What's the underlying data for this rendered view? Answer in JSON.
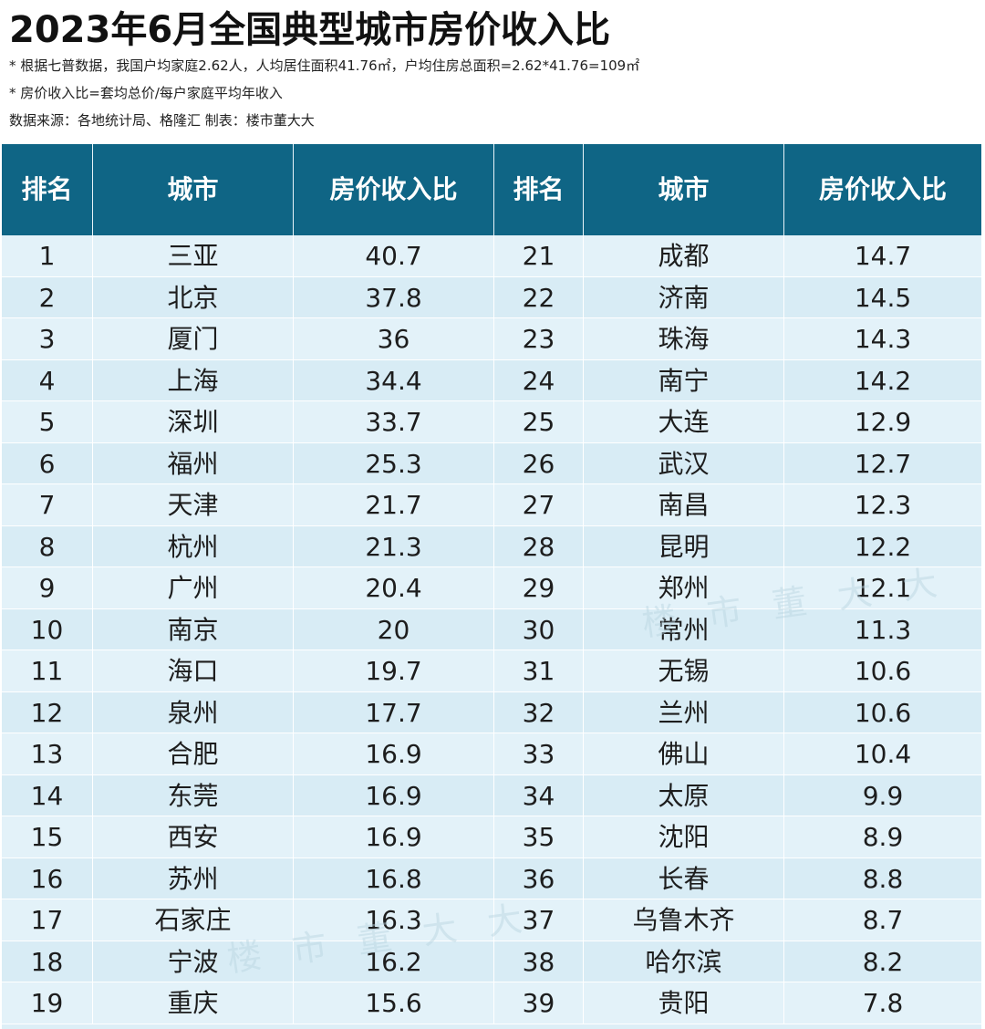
{
  "title": "2023年6月全国典型城市房价收入比",
  "notes": [
    "* 根据七普数据，我国户均家庭2.62人，人均居住面积41.76㎡，户均住房总面积=2.62*41.76=109㎡",
    "* 房价收入比=套均总价/每户家庭平均年收入",
    "数据来源：各地统计局、格隆汇  制表：楼市董大大"
  ],
  "watermark": "楼市董大大",
  "table": {
    "headers": [
      "排名",
      "城市",
      "房价收入比",
      "排名",
      "城市",
      "房价收入比"
    ],
    "rows": [
      {
        "rank_a": "1",
        "city_a": "三亚",
        "ratio_a": "40.7",
        "rank_b": "21",
        "city_b": "成都",
        "ratio_b": "14.7"
      },
      {
        "rank_a": "2",
        "city_a": "北京",
        "ratio_a": "37.8",
        "rank_b": "22",
        "city_b": "济南",
        "ratio_b": "14.5"
      },
      {
        "rank_a": "3",
        "city_a": "厦门",
        "ratio_a": "36",
        "rank_b": "23",
        "city_b": "珠海",
        "ratio_b": "14.3"
      },
      {
        "rank_a": "4",
        "city_a": "上海",
        "ratio_a": "34.4",
        "rank_b": "24",
        "city_b": "南宁",
        "ratio_b": "14.2"
      },
      {
        "rank_a": "5",
        "city_a": "深圳",
        "ratio_a": "33.7",
        "rank_b": "25",
        "city_b": "大连",
        "ratio_b": "12.9"
      },
      {
        "rank_a": "6",
        "city_a": "福州",
        "ratio_a": "25.3",
        "rank_b": "26",
        "city_b": "武汉",
        "ratio_b": "12.7"
      },
      {
        "rank_a": "7",
        "city_a": "天津",
        "ratio_a": "21.7",
        "rank_b": "27",
        "city_b": "南昌",
        "ratio_b": "12.3"
      },
      {
        "rank_a": "8",
        "city_a": "杭州",
        "ratio_a": "21.3",
        "rank_b": "28",
        "city_b": "昆明",
        "ratio_b": "12.2"
      },
      {
        "rank_a": "9",
        "city_a": "广州",
        "ratio_a": "20.4",
        "rank_b": "29",
        "city_b": "郑州",
        "ratio_b": "12.1"
      },
      {
        "rank_a": "10",
        "city_a": "南京",
        "ratio_a": "20",
        "rank_b": "30",
        "city_b": "常州",
        "ratio_b": "11.3"
      },
      {
        "rank_a": "11",
        "city_a": "海口",
        "ratio_a": "19.7",
        "rank_b": "31",
        "city_b": "无锡",
        "ratio_b": "10.6"
      },
      {
        "rank_a": "12",
        "city_a": "泉州",
        "ratio_a": "17.7",
        "rank_b": "32",
        "city_b": "兰州",
        "ratio_b": "10.6"
      },
      {
        "rank_a": "13",
        "city_a": "合肥",
        "ratio_a": "16.9",
        "rank_b": "33",
        "city_b": "佛山",
        "ratio_b": "10.4"
      },
      {
        "rank_a": "14",
        "city_a": "东莞",
        "ratio_a": "16.9",
        "rank_b": "34",
        "city_b": "太原",
        "ratio_b": "9.9"
      },
      {
        "rank_a": "15",
        "city_a": "西安",
        "ratio_a": "16.9",
        "rank_b": "35",
        "city_b": "沈阳",
        "ratio_b": "8.9"
      },
      {
        "rank_a": "16",
        "city_a": "苏州",
        "ratio_a": "16.8",
        "rank_b": "36",
        "city_b": "长春",
        "ratio_b": "8.8"
      },
      {
        "rank_a": "17",
        "city_a": "石家庄",
        "ratio_a": "16.3",
        "rank_b": "37",
        "city_b": "乌鲁木齐",
        "ratio_b": "8.7"
      },
      {
        "rank_a": "18",
        "city_a": "宁波",
        "ratio_a": "16.2",
        "rank_b": "38",
        "city_b": "哈尔滨",
        "ratio_b": "8.2"
      },
      {
        "rank_a": "19",
        "city_a": "重庆",
        "ratio_a": "15.6",
        "rank_b": "39",
        "city_b": "贵阳",
        "ratio_b": "7.8"
      }
    ]
  }
}
